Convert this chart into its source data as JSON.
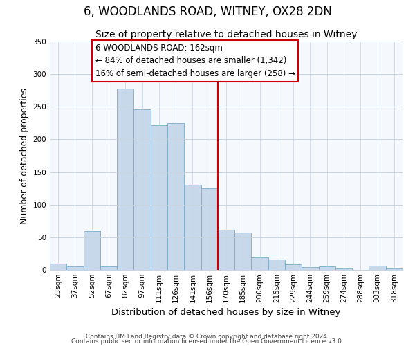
{
  "title": "6, WOODLANDS ROAD, WITNEY, OX28 2DN",
  "subtitle": "Size of property relative to detached houses in Witney",
  "xlabel": "Distribution of detached houses by size in Witney",
  "ylabel": "Number of detached properties",
  "bar_labels": [
    "23sqm",
    "37sqm",
    "52sqm",
    "67sqm",
    "82sqm",
    "97sqm",
    "111sqm",
    "126sqm",
    "141sqm",
    "156sqm",
    "170sqm",
    "185sqm",
    "200sqm",
    "215sqm",
    "229sqm",
    "244sqm",
    "259sqm",
    "274sqm",
    "288sqm",
    "303sqm",
    "318sqm"
  ],
  "bar_values": [
    10,
    5,
    59,
    5,
    278,
    246,
    222,
    225,
    130,
    125,
    62,
    57,
    19,
    16,
    9,
    4,
    5,
    2,
    0,
    6,
    2
  ],
  "bar_color": "#c8d8eb",
  "bar_edge_color": "#7aaac8",
  "vline_x": 9.5,
  "vline_color": "#cc0000",
  "annotation_text": "6 WOODLANDS ROAD: 162sqm\n← 84% of detached houses are smaller (1,342)\n16% of semi-detached houses are larger (258) →",
  "annotation_box_facecolor": "#ffffff",
  "annotation_box_edgecolor": "#cc0000",
  "ylim": [
    0,
    350
  ],
  "yticks": [
    0,
    50,
    100,
    150,
    200,
    250,
    300,
    350
  ],
  "footer1": "Contains HM Land Registry data © Crown copyright and database right 2024.",
  "footer2": "Contains public sector information licensed under the Open Government Licence v3.0.",
  "background_color": "#ffffff",
  "plot_bg_color": "#f5f8fc",
  "grid_color": "#c8d4e0",
  "title_fontsize": 12,
  "subtitle_fontsize": 10,
  "tick_fontsize": 7.5,
  "ylabel_fontsize": 9,
  "xlabel_fontsize": 9.5,
  "footer_fontsize": 6.5,
  "annotation_fontsize": 8.5
}
